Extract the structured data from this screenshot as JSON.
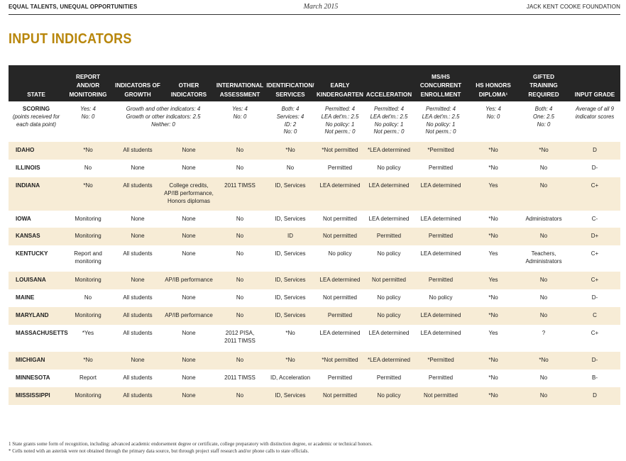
{
  "header": {
    "left": "EQUAL TALENTS, UNEQUAL OPPORTUNITIES",
    "center": "March 2015",
    "right": "JACK KENT COOKE FOUNDATION"
  },
  "title": "INPUT INDICATORS",
  "columns": [
    "STATE",
    "REPORT AND/OR MONITORING",
    "INDICATORS OF GROWTH",
    "OTHER INDICATORS",
    "INTERNATIONAL ASSESSMENT",
    "IDENTIFICATION/ SERVICES",
    "EARLY KINDERGARTEN",
    "ACCELERATION",
    "MS/HS CONCURRENT ENROLLMENT",
    "HS HONORS DIPLOMA¹",
    "GIFTED TRAINING REQUIRED",
    "INPUT GRADE"
  ],
  "scoring": {
    "label": "SCORING",
    "sublabel": "(points received for each data point)",
    "report": "Yes: 4\nNo: 0",
    "growth_other": "Growth and other indicators: 4\nGrowth or other indicators: 2.5\nNeither: 0",
    "international": "Yes: 4\nNo: 0",
    "identification": "Both: 4\nServices: 4\nID: 2\nNo: 0",
    "early_k": "Permitted: 4\nLEA det'm.: 2.5\nNo policy: 1\nNot perm.: 0",
    "acceleration": "Permitted: 4\nLEA det'm.: 2.5\nNo policy: 1\nNot perm.: 0",
    "concurrent": "Permitted: 4\nLEA det'm.: 2.5\nNo policy: 1\nNot perm.: 0",
    "honors": "Yes: 4\nNo: 0",
    "gifted": "Both: 4\nOne: 2.5\nNo: 0",
    "grade": "Average of all 9 indicator scores"
  },
  "rows": [
    [
      "IDAHO",
      "*No",
      "All students",
      "None",
      "No",
      "*No",
      "*Not permitted",
      "*LEA determined",
      "*Permitted",
      "*No",
      "*No",
      "D"
    ],
    [
      "ILLINOIS",
      "No",
      "None",
      "None",
      "No",
      "No",
      "Permitted",
      "No policy",
      "Permitted",
      "*No",
      "No",
      "D-"
    ],
    [
      "INDIANA",
      "*No",
      "All students",
      "College credits,\nAP/IB performance,\nHonors diplomas",
      "2011 TIMSS",
      "ID, Services",
      "LEA determined",
      "LEA determined",
      "LEA determined",
      "Yes",
      "No",
      "C+"
    ],
    [
      "IOWA",
      "Monitoring",
      "None",
      "None",
      "No",
      "ID, Services",
      "Not permitted",
      "LEA determined",
      "LEA determined",
      "*No",
      "Administrators",
      "C-"
    ],
    [
      "KANSAS",
      "Monitoring",
      "None",
      "None",
      "No",
      "ID",
      "Not permitted",
      "Permitted",
      "Permitted",
      "*No",
      "No",
      "D+"
    ],
    [
      "KENTUCKY",
      "Report and\nmonitoring",
      "All students",
      "None",
      "No",
      "ID, Services",
      "No policy",
      "No policy",
      "LEA determined",
      "Yes",
      "Teachers,\nAdministrators",
      "C+"
    ],
    [
      "LOUISANA",
      "Monitoring",
      "None",
      "AP/IB performance",
      "No",
      "ID, Services",
      "LEA determined",
      "Not permitted",
      "Permitted",
      "Yes",
      "No",
      "C+"
    ],
    [
      "MAINE",
      "No",
      "All students",
      "None",
      "No",
      "ID, Services",
      "Not permitted",
      "No policy",
      "No policy",
      "*No",
      "No",
      "D-"
    ],
    [
      "MARYLAND",
      "Monitoring",
      "All students",
      "AP/IB performance",
      "No",
      "ID, Services",
      "Permitted",
      "No policy",
      "LEA determined",
      "*No",
      "No",
      "C"
    ],
    [
      "MASSACHUSETTS",
      "*Yes",
      "All students",
      "None",
      "2012 PISA,\n2011 TIMSS",
      "*No",
      "LEA determined",
      "LEA determined",
      "LEA determined",
      "Yes",
      "?",
      "C+"
    ],
    [
      "MICHIGAN",
      "*No",
      "None",
      "None",
      "No",
      "*No",
      "*Not permitted",
      "*LEA determined",
      "*Permitted",
      "*No",
      "*No",
      "D-"
    ],
    [
      "MINNESOTA",
      "Report",
      "All students",
      "None",
      "2011 TIMSS",
      "ID, Acceleration",
      "Permitted",
      "Permitted",
      "Permitted",
      "*No",
      "No",
      "B-"
    ],
    [
      "MISSISSIPPI",
      "Monitoring",
      "All students",
      "None",
      "No",
      "ID, Services",
      "Not permitted",
      "No policy",
      "Not permitted",
      "*No",
      "No",
      "D"
    ]
  ],
  "footnotes": [
    "1  State grants some form of recognition, including: advanced academic endorsement degree or certificate, college preparatory with distinction degree, or academic or technical honors.",
    "*  Cells noted with an asterisk were not obtained through the primary data source, but through project staff research and/or phone calls to state officials."
  ]
}
